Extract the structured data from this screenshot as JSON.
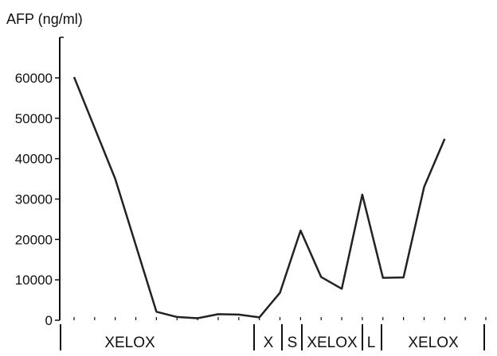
{
  "chart_data": {
    "type": "line",
    "title": "",
    "ylabel": "AFP (ng/ml)",
    "xlabel": "",
    "ylim": [
      0,
      60000
    ],
    "yticks": [
      0,
      10000,
      20000,
      30000,
      40000,
      50000,
      60000
    ],
    "ytick_labels": [
      "0",
      "10000",
      "20000",
      "30000",
      "40000",
      "50000",
      "60000"
    ],
    "grid": false,
    "legend": "none",
    "line_color": "#222222",
    "x_points": 21,
    "series": [
      {
        "values": [
          60200,
          35000,
          2100,
          800,
          500,
          1500,
          1400,
          700,
          6800,
          22200,
          10700,
          7800,
          31100,
          10500,
          10600,
          33000,
          44900
        ]
      }
    ],
    "x_positions": [
      0,
      2,
      4,
      5,
      6,
      7,
      8,
      9,
      10,
      11,
      12,
      13,
      14,
      15,
      16,
      17,
      18
    ],
    "treatment_segments": [
      {
        "label": "XELOX"
      },
      {
        "label": "X"
      },
      {
        "label": "S"
      },
      {
        "label": "XELOX"
      },
      {
        "label": "L"
      },
      {
        "label": "XELOX"
      }
    ]
  }
}
